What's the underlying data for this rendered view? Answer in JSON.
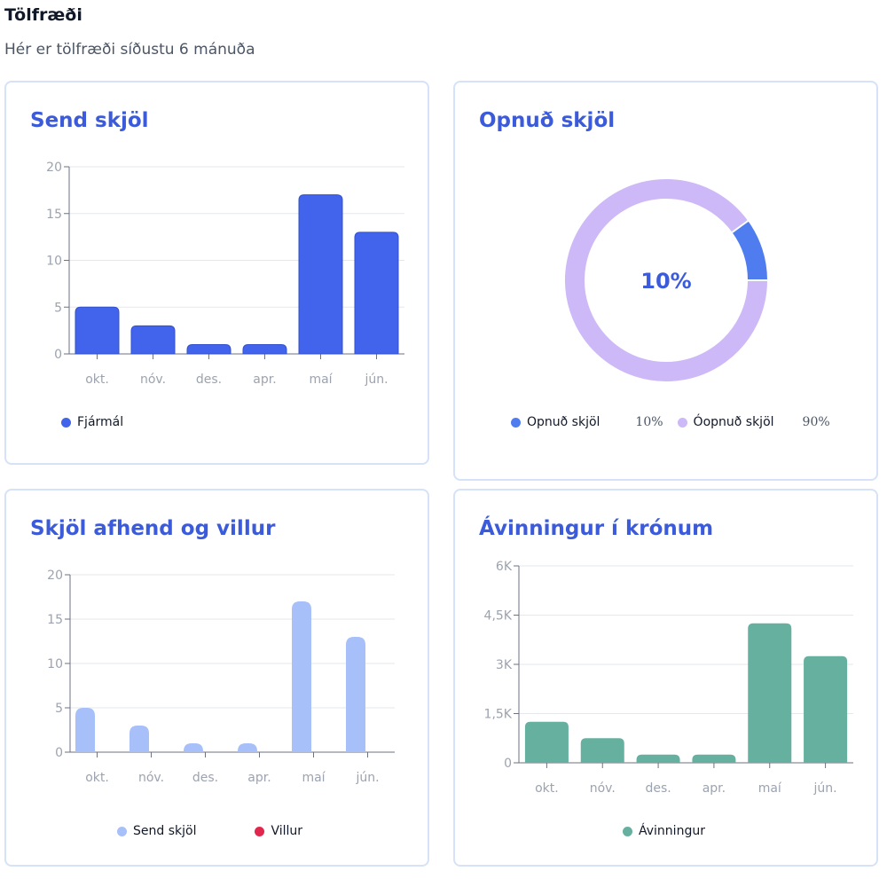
{
  "header": {
    "title": "Tölfræði",
    "subtitle": "Hér er tölfræði síðustu 6 mánuða"
  },
  "colors": {
    "blue": "#4263eb",
    "light_blue": "#a8c0fa",
    "red": "#e0284f",
    "green": "#66b0a0",
    "purple": "#cdb8f8",
    "opened_blue": "#4f7df0",
    "title_blue": "#3b5bdb"
  },
  "cards": {
    "sent": {
      "title": "Send skjöl",
      "legend": "Fjármál"
    },
    "opened": {
      "title": "Opnuð skjöl",
      "center_label": "10%",
      "legend": [
        {
          "label": "Opnuð skjöl",
          "value": "10%"
        },
        {
          "label": "Óopnuð skjöl",
          "value": "90%"
        }
      ]
    },
    "delivered": {
      "title": "Skjöl afhend og villur",
      "legend": [
        "Send skjöl",
        "Villur"
      ]
    },
    "savings": {
      "title": "Ávinningur í krónum",
      "legend": "Ávinningur"
    }
  },
  "chart_data": [
    {
      "type": "bar",
      "title": "Send skjöl",
      "categories": [
        "okt.",
        "nóv.",
        "des.",
        "apr.",
        "maí",
        "jún."
      ],
      "series": [
        {
          "name": "Fjármál",
          "values": [
            5,
            3,
            1,
            1,
            17,
            13
          ]
        }
      ],
      "ylim": [
        0,
        20
      ],
      "yticks": [
        "0",
        "5",
        "10",
        "15",
        "20"
      ],
      "grid": true,
      "legend": "bottom-left"
    },
    {
      "type": "pie",
      "title": "Opnuð skjöl",
      "labels": [
        "Opnuð skjöl",
        "Óopnuð skjöl"
      ],
      "values": [
        10,
        90
      ],
      "donut": true,
      "legend": "bottom"
    },
    {
      "type": "bar",
      "title": "Skjöl afhend og villur",
      "categories": [
        "okt.",
        "nóv.",
        "des.",
        "apr.",
        "maí",
        "jún."
      ],
      "series": [
        {
          "name": "Send skjöl",
          "values": [
            5,
            3,
            1,
            1,
            17,
            13
          ]
        },
        {
          "name": "Villur",
          "values": [
            0,
            0,
            0,
            0,
            0,
            0
          ]
        }
      ],
      "ylim": [
        0,
        20
      ],
      "yticks": [
        "0",
        "5",
        "10",
        "15",
        "20"
      ],
      "grid": true,
      "legend": "bottom"
    },
    {
      "type": "bar",
      "title": "Ávinningur í krónum",
      "categories": [
        "okt.",
        "nóv.",
        "des.",
        "apr.",
        "maí",
        "jún."
      ],
      "series": [
        {
          "name": "Ávinningur",
          "values": [
            1250,
            750,
            250,
            250,
            4250,
            3250
          ]
        }
      ],
      "ylim": [
        0,
        6000
      ],
      "yticks": [
        "0",
        "1,5K",
        "3K",
        "4,5K",
        "6K"
      ],
      "grid": true,
      "legend": "bottom"
    }
  ]
}
